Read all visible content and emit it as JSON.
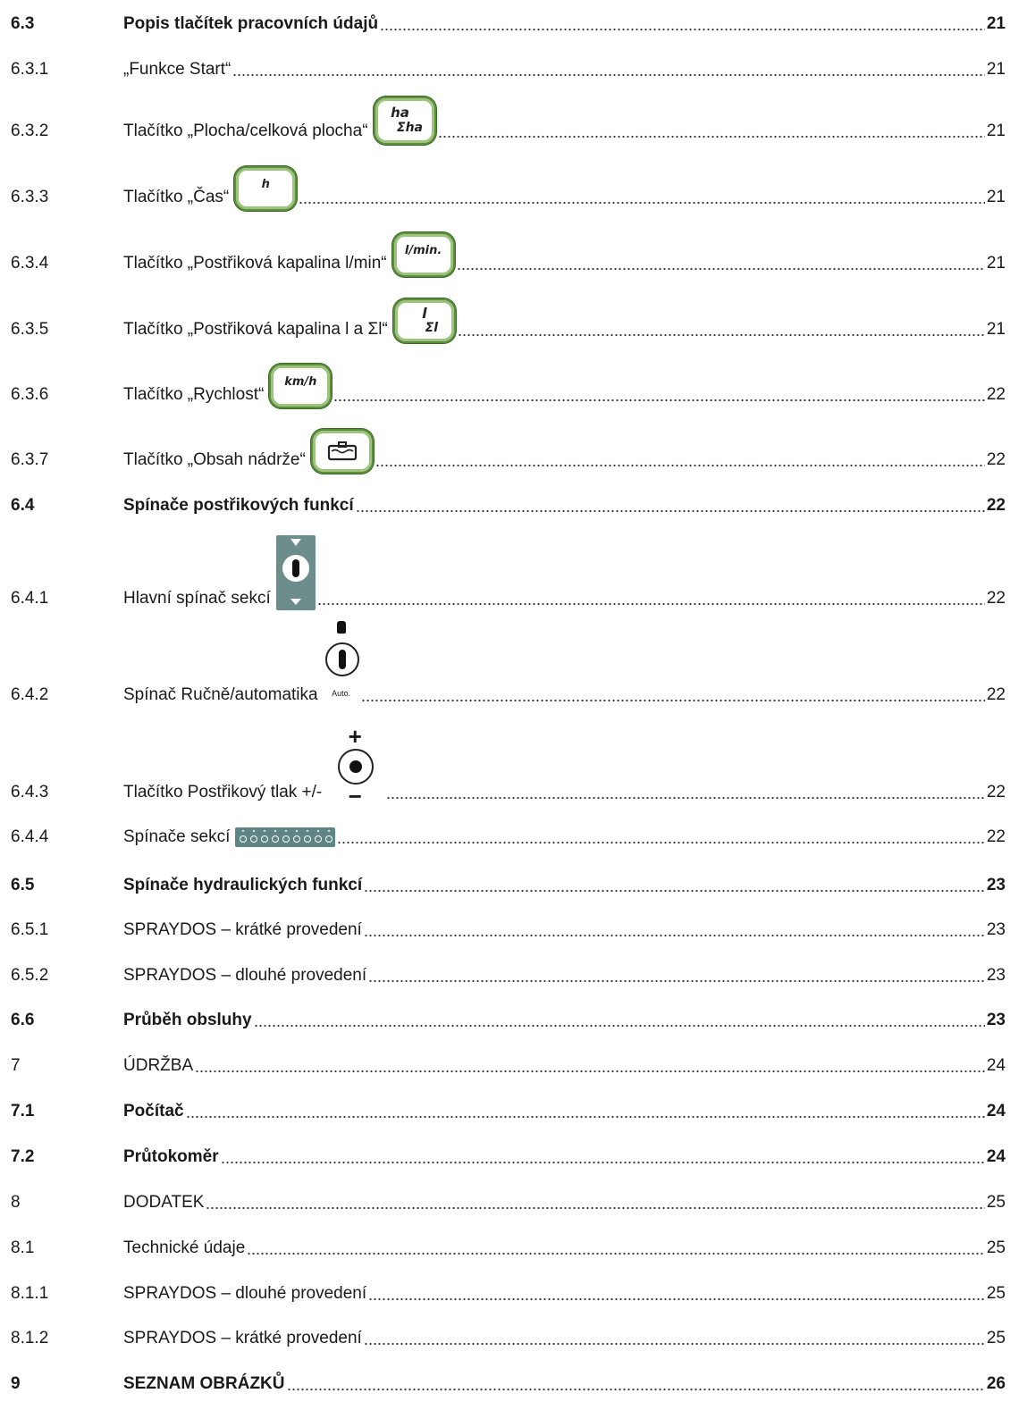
{
  "toc": [
    {
      "num": "6.3",
      "title": "Popis tlačítek pracovních údajů",
      "page": "21",
      "bold": true
    },
    {
      "num": "6.3.1",
      "title": "„Funkce Start“",
      "page": "21"
    },
    {
      "num": "6.3.2",
      "title": "Tlačítko „Plocha/celková plocha“",
      "page": "21",
      "icon": "ha-key",
      "icon_text": [
        "ha",
        "Σha"
      ]
    },
    {
      "num": "6.3.3",
      "title": "Tlačítko „Čas“",
      "page": "21",
      "icon": "time-key",
      "icon_text": [
        "h"
      ]
    },
    {
      "num": "6.3.4",
      "title": "Tlačítko „Postřiková kapalina l/min“",
      "page": "21",
      "icon": "l-min-key",
      "icon_text": [
        "l/min."
      ]
    },
    {
      "num": "6.3.5",
      "title": "Tlačítko „Postřiková kapalina l a Σl“",
      "page": "21",
      "icon": "l-sum-key",
      "icon_text": [
        "l",
        "Σl"
      ]
    },
    {
      "num": "6.3.6",
      "title": "Tlačítko „Rychlost“",
      "page": "22",
      "icon": "speed-key",
      "icon_text": [
        "km/h"
      ]
    },
    {
      "num": "6.3.7",
      "title": "Tlačítko „Obsah nádrže“",
      "page": "22",
      "icon": "tank-key"
    },
    {
      "num": "6.4",
      "title": "Spínače postřikových funkcí",
      "page": "22",
      "bold": true
    },
    {
      "num": "6.4.1",
      "title": "Hlavní spínač sekcí",
      "page": "22",
      "icon": "main-switch"
    },
    {
      "num": "6.4.2",
      "title": "Spínač Ručně/automatika",
      "page": "22",
      "icon": "manual-auto-switch",
      "icon_text": [
        "Auto."
      ]
    },
    {
      "num": "6.4.3",
      "title": "Tlačítko Postřikový tlak +/-",
      "page": "22",
      "icon": "pressure-switch",
      "icon_text": [
        "+",
        "−"
      ]
    },
    {
      "num": "6.4.4",
      "title": "Spínače sekcí",
      "page": "22",
      "icon": "section-switches"
    },
    {
      "num": "6.5",
      "title": "Spínače hydraulických funkcí",
      "page": "23",
      "bold": true
    },
    {
      "num": "6.5.1",
      "title": "SPRAYDOS – krátké provedení",
      "page": "23"
    },
    {
      "num": "6.5.2",
      "title": "SPRAYDOS – dlouhé provedení",
      "page": "23"
    },
    {
      "num": "6.6",
      "title": "Průběh obsluhy",
      "page": "23",
      "bold": true
    },
    {
      "num": "7",
      "title": "ÚDRŽBA",
      "page": "24"
    },
    {
      "num": "7.1",
      "title": "Počítač",
      "page": "24",
      "bold": true
    },
    {
      "num": "7.2",
      "title": "Průtokoměr",
      "page": "24",
      "bold": true
    },
    {
      "num": "8",
      "title": "DODATEK",
      "page": "25"
    },
    {
      "num": "8.1",
      "title": "Technické údaje",
      "page": "25"
    },
    {
      "num": "8.1.1",
      "title": "SPRAYDOS – dlouhé provedení",
      "page": "25"
    },
    {
      "num": "8.1.2",
      "title": "SPRAYDOS – krátké provedení",
      "page": "25"
    },
    {
      "num": "9",
      "title": "SEZNAM OBRÁZKŮ",
      "page": "26",
      "bold": true
    }
  ],
  "colors": {
    "key_border": "#5b8f3c",
    "key_inner": "#9dc47d",
    "switch_panel": "#6d8d8c",
    "text": "#1a1a1a"
  }
}
